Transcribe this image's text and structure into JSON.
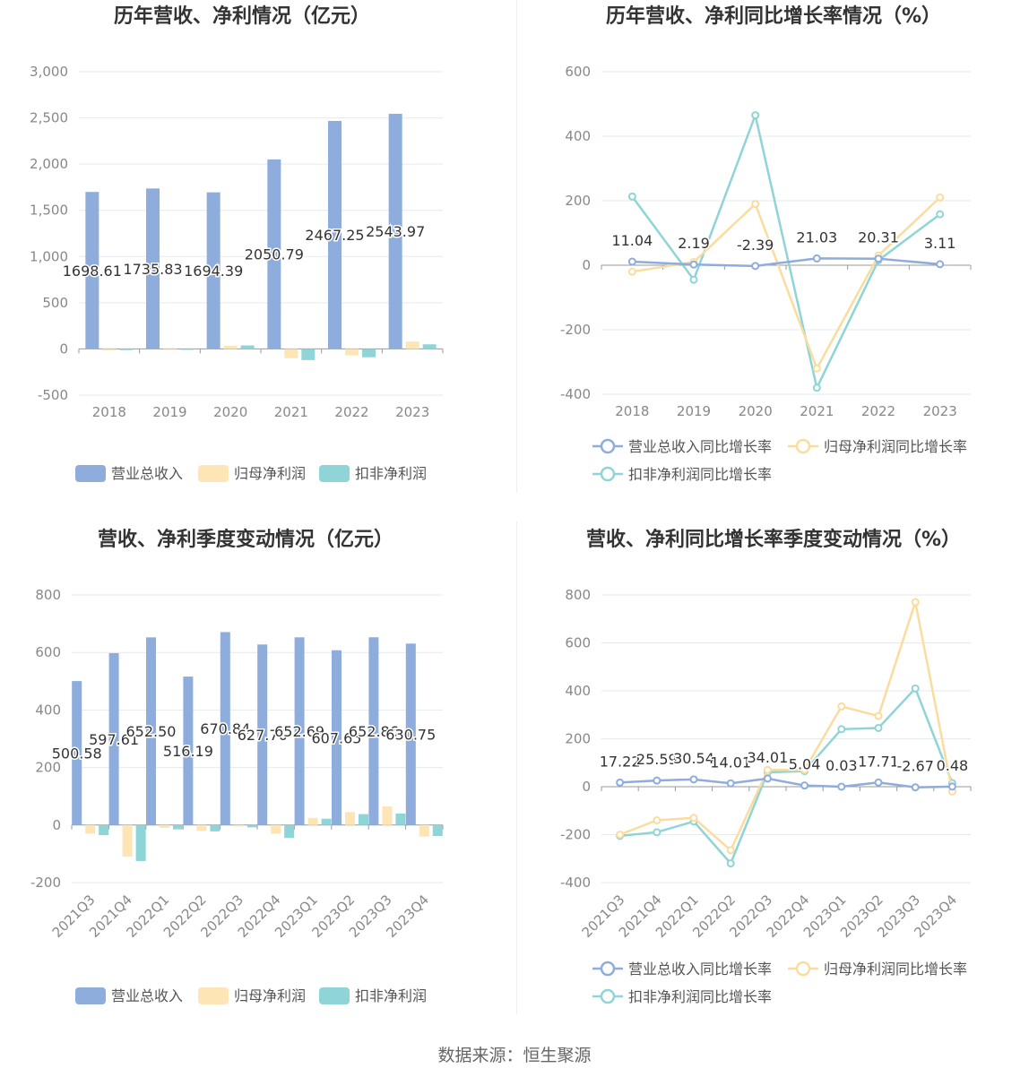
{
  "source": "数据来源：恒生聚源",
  "colors": {
    "revenue": "#8eacdc",
    "parent_profit": "#fde5b6",
    "nonrecurring_profit": "#8fd4d6",
    "revenue_line": "#8eacdc",
    "parent_line": "#fbdc9f",
    "nonrecurring_line": "#8fd4d6"
  },
  "chart_data": [
    {
      "id": "annual_values",
      "type": "bar",
      "title": "历年营收、净利情况（亿元）",
      "categories": [
        "2018",
        "2019",
        "2020",
        "2021",
        "2022",
        "2023"
      ],
      "ylim": [
        -500,
        3000
      ],
      "yticks": [
        3000,
        2500,
        2000,
        1500,
        1000,
        500,
        0,
        -500
      ],
      "ytick_labels": [
        "3,000",
        "2,500",
        "2,000",
        "1,500",
        "1,000",
        "500",
        "0",
        "-500"
      ],
      "grid": true,
      "legend_position": "bottom",
      "series": [
        {
          "name": "营业总收入",
          "values": [
            1698.61,
            1735.83,
            1694.39,
            2050.79,
            2467.25,
            2543.97
          ],
          "labels": [
            "1698.61",
            "1735.83",
            "1694.39",
            "2050.79",
            "2467.25",
            "2543.97"
          ]
        },
        {
          "name": "归母净利润",
          "values": [
            -15,
            -10,
            35,
            -100,
            -70,
            80
          ]
        },
        {
          "name": "扣非净利润",
          "values": [
            -12,
            -8,
            38,
            -120,
            -90,
            50
          ]
        }
      ]
    },
    {
      "id": "annual_growth",
      "type": "line",
      "title": "历年营收、净利同比增长率情况（%）",
      "categories": [
        "2018",
        "2019",
        "2020",
        "2021",
        "2022",
        "2023"
      ],
      "ylim": [
        -400,
        600
      ],
      "yticks": [
        600,
        400,
        200,
        0,
        -200,
        -400
      ],
      "ytick_labels": [
        "600",
        "400",
        "200",
        "0",
        "-200",
        "-400"
      ],
      "grid": true,
      "legend_position": "bottom",
      "series": [
        {
          "name": "营业总收入同比增长率",
          "values": [
            11.04,
            2.19,
            -2.39,
            21.03,
            20.31,
            3.11
          ],
          "labels": [
            "11.04",
            "2.19",
            "-2.39",
            "21.03",
            "20.31",
            "3.11"
          ]
        },
        {
          "name": "归母净利润同比增长率",
          "values": [
            -20,
            10,
            190,
            -320,
            30,
            210
          ]
        },
        {
          "name": "扣非净利润同比增长率",
          "values": [
            213,
            -45,
            465,
            -380,
            15,
            158
          ]
        }
      ]
    },
    {
      "id": "quarterly_values",
      "type": "bar",
      "title": "营收、净利季度变动情况（亿元）",
      "categories": [
        "2021Q3",
        "2021Q4",
        "2022Q1",
        "2022Q2",
        "2022Q3",
        "2022Q4",
        "2023Q1",
        "2023Q2",
        "2023Q3",
        "2023Q4"
      ],
      "ylim": [
        -200,
        800
      ],
      "yticks": [
        800,
        600,
        400,
        200,
        0,
        -200
      ],
      "ytick_labels": [
        "800",
        "600",
        "400",
        "200",
        "0",
        "-200"
      ],
      "grid": true,
      "legend_position": "bottom",
      "series": [
        {
          "name": "营业总收入",
          "values": [
            500.58,
            597.61,
            652.5,
            516.19,
            670.84,
            627.76,
            652.69,
            607.65,
            652.86,
            630.75
          ],
          "labels": [
            "500.58",
            "597.61",
            "652.50",
            "516.19",
            "670.84",
            "627.76",
            "652.69",
            "607.65",
            "652.86",
            "630.75"
          ]
        },
        {
          "name": "归母净利润",
          "values": [
            -30,
            -110,
            -10,
            -20,
            -5,
            -30,
            25,
            45,
            65,
            -40
          ]
        },
        {
          "name": "扣非净利润",
          "values": [
            -35,
            -125,
            -15,
            -22,
            -8,
            -45,
            22,
            38,
            40,
            -38
          ]
        }
      ]
    },
    {
      "id": "quarterly_growth",
      "type": "line",
      "title": "营收、净利同比增长率季度变动情况（%）",
      "categories": [
        "2021Q3",
        "2021Q4",
        "2022Q1",
        "2022Q2",
        "2022Q3",
        "2022Q4",
        "2023Q1",
        "2023Q2",
        "2023Q3",
        "2023Q4"
      ],
      "ylim": [
        -400,
        800
      ],
      "yticks": [
        800,
        600,
        400,
        200,
        0,
        -200,
        -400
      ],
      "ytick_labels": [
        "800",
        "600",
        "400",
        "200",
        "0",
        "-200",
        "-400"
      ],
      "grid": true,
      "legend_position": "bottom",
      "series": [
        {
          "name": "营业总收入同比增长率",
          "values": [
            17.22,
            25.59,
            30.54,
            14.01,
            34.01,
            5.04,
            0.03,
            17.71,
            -2.67,
            0.48
          ],
          "labels": [
            "17.22",
            "25.59",
            "30.54",
            "14.01",
            "34.01",
            "5.04",
            "0.03",
            "17.71",
            "-2.67",
            "0.48"
          ]
        },
        {
          "name": "归母净利润同比增长率",
          "values": [
            -200,
            -140,
            -130,
            -265,
            70,
            70,
            335,
            295,
            770,
            -20
          ]
        },
        {
          "name": "扣非净利润同比增长率",
          "values": [
            -205,
            -190,
            -145,
            -320,
            60,
            65,
            240,
            245,
            410,
            15
          ]
        }
      ]
    }
  ]
}
